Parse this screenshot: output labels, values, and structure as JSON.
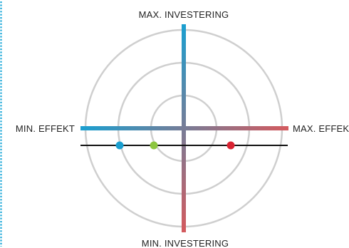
{
  "labels": {
    "top": "MAX. INVESTERING",
    "bottom": "MIN. INVESTERING",
    "left": "MIN. EFFEKT",
    "right": "MAX. EFFEK"
  },
  "colors": {
    "blue": "#1a9fd0",
    "red": "#d45a5e",
    "green": "#8cc63f",
    "dot_red": "#d92332",
    "ring": "#cfcfcf",
    "baseline": "#111111",
    "border_dots": "#1aa7d8"
  },
  "markers": [
    {
      "name": "blue-marker",
      "color": "#1a9fd0"
    },
    {
      "name": "green-marker",
      "color": "#8cc63f"
    },
    {
      "name": "red-marker",
      "color": "#d92332"
    }
  ]
}
